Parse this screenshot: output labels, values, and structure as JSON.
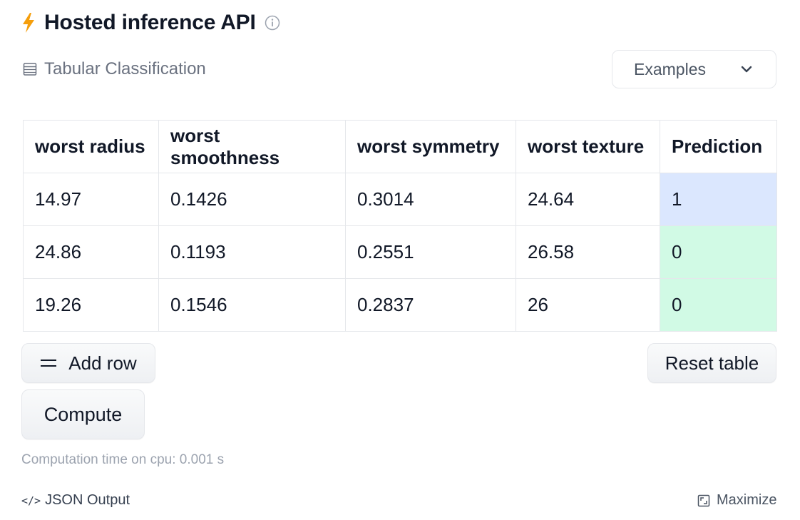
{
  "header": {
    "title": "Hosted inference API",
    "accent_color": "#f59e0b"
  },
  "task": {
    "label": "Tabular Classification"
  },
  "examples_dropdown": {
    "label": "Examples"
  },
  "table": {
    "columns": [
      "worst radius",
      "worst smoothness",
      "worst symmetry",
      "worst texture",
      "Prediction"
    ],
    "rows": [
      [
        "14.97",
        "0.1426",
        "0.3014",
        "24.64",
        "1"
      ],
      [
        "24.86",
        "0.1193",
        "0.2551",
        "26.58",
        "0"
      ],
      [
        "19.26",
        "0.1546",
        "0.2837",
        "26",
        "0"
      ]
    ],
    "prediction_colors": {
      "1": "#dbe7fe",
      "0": "#d1fae5"
    }
  },
  "buttons": {
    "add_row": "Add row",
    "reset_table": "Reset table",
    "compute": "Compute"
  },
  "status": {
    "timing": "Computation time on cpu: 0.001 s"
  },
  "footer": {
    "json_output": "JSON Output",
    "maximize": "Maximize"
  }
}
